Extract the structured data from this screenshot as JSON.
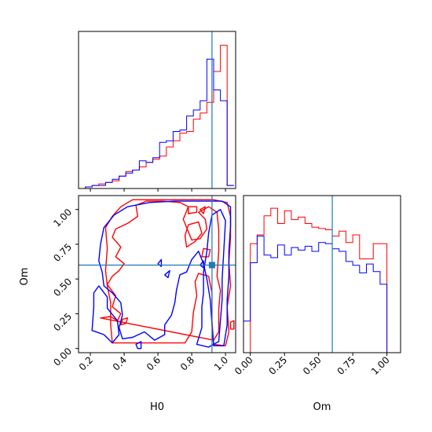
{
  "chart_data": [
    {
      "type": "histogram",
      "panel": "H0 marginal",
      "xlim": [
        0.13,
        1.06
      ],
      "bin_edges": [
        0.13,
        0.17,
        0.21,
        0.25,
        0.29,
        0.33,
        0.37,
        0.41,
        0.45,
        0.49,
        0.53,
        0.57,
        0.61,
        0.65,
        0.69,
        0.73,
        0.77,
        0.81,
        0.85,
        0.89,
        0.93,
        0.97,
        1.01,
        1.05
      ],
      "truth": 0.92,
      "series": [
        {
          "color": "#ff0000",
          "values": [
            0.0,
            0.01,
            0.02,
            0.03,
            0.04,
            0.05,
            0.08,
            0.11,
            0.12,
            0.14,
            0.17,
            0.19,
            0.21,
            0.27,
            0.31,
            0.36,
            0.37,
            0.45,
            0.49,
            0.56,
            0.76,
            0.93,
            0.02
          ]
        },
        {
          "color": "#0000ff",
          "values": [
            0.0,
            0.01,
            0.02,
            0.02,
            0.04,
            0.06,
            0.08,
            0.1,
            0.12,
            0.18,
            0.17,
            0.2,
            0.3,
            0.31,
            0.37,
            0.38,
            0.47,
            0.51,
            0.57,
            0.84,
            0.64,
            0.57,
            0.02
          ]
        }
      ]
    },
    {
      "type": "contour",
      "panel": "H0 vs Om",
      "xlabel": "H0",
      "ylabel": "Om",
      "xlim": [
        0.13,
        1.06
      ],
      "ylim": [
        -0.03,
        1.1
      ],
      "xticks": [
        "0.2",
        "0.4",
        "0.6",
        "0.8",
        "1.0"
      ],
      "yticks": [
        "0.00",
        "0.25",
        "0.50",
        "0.75",
        "1.00"
      ],
      "truth": [
        0.92,
        0.6
      ],
      "series": [
        {
          "color": "#ff0000",
          "contours": [
            [
              [
                0.33,
                0.04
              ],
              [
                0.32,
                0.17
              ],
              [
                0.32,
                0.33
              ],
              [
                0.3,
                0.45
              ],
              [
                0.29,
                0.56
              ],
              [
                0.3,
                0.72
              ],
              [
                0.29,
                0.87
              ],
              [
                0.33,
                0.95
              ],
              [
                0.38,
                1.02
              ],
              [
                0.45,
                1.07
              ],
              [
                0.6,
                1.07
              ],
              [
                0.8,
                1.07
              ],
              [
                0.93,
                1.07
              ],
              [
                1.01,
                1.05
              ],
              [
                1.03,
                0.95
              ],
              [
                1.03,
                0.8
              ],
              [
                1.02,
                0.62
              ],
              [
                1.03,
                0.45
              ],
              [
                1.01,
                0.3
              ],
              [
                1.02,
                0.12
              ],
              [
                1.0,
                0.02
              ],
              [
                0.93,
                0.03
              ],
              [
                0.92,
                0.2
              ],
              [
                0.92,
                0.4
              ],
              [
                0.9,
                0.52
              ],
              [
                0.84,
                0.54
              ],
              [
                0.82,
                0.48
              ],
              [
                0.83,
                0.38
              ],
              [
                0.81,
                0.26
              ],
              [
                0.8,
                0.12
              ],
              [
                0.76,
                0.04
              ]
            ],
            [
              [
                0.26,
                0.22
              ],
              [
                0.32,
                0.23
              ],
              [
                0.36,
                0.2
              ],
              [
                0.38,
                0.25
              ],
              [
                0.33,
                0.3
              ],
              [
                0.35,
                0.38
              ],
              [
                0.3,
                0.46
              ],
              [
                0.33,
                0.52
              ],
              [
                0.37,
                0.56
              ],
              [
                0.4,
                0.61
              ],
              [
                0.35,
                0.66
              ],
              [
                0.38,
                0.73
              ],
              [
                0.33,
                0.8
              ],
              [
                0.35,
                0.86
              ],
              [
                0.42,
                0.9
              ],
              [
                0.48,
                0.95
              ],
              [
                0.47,
                1.03
              ],
              [
                0.53,
                1.06
              ],
              [
                0.63,
                1.06
              ],
              [
                0.73,
                1.05
              ],
              [
                0.78,
                1.02
              ],
              [
                0.75,
                0.93
              ],
              [
                0.78,
                0.84
              ],
              [
                0.8,
                0.78
              ],
              [
                0.85,
                0.79
              ],
              [
                0.89,
                0.86
              ],
              [
                0.88,
                0.93
              ],
              [
                0.84,
                0.98
              ],
              [
                0.9,
                1.02
              ],
              [
                0.95,
                0.98
              ],
              [
                0.96,
                0.85
              ],
              [
                0.96,
                0.7
              ],
              [
                0.95,
                0.52
              ],
              [
                0.97,
                0.42
              ],
              [
                0.96,
                0.28
              ],
              [
                0.96,
                0.12
              ],
              [
                0.93,
                0.06
              ]
            ],
            [
              [
                0.77,
                0.73
              ],
              [
                0.76,
                0.81
              ],
              [
                0.78,
                0.89
              ],
              [
                0.84,
                0.91
              ],
              [
                0.86,
                0.83
              ],
              [
                0.82,
                0.77
              ]
            ],
            [
              [
                0.78,
                0.97
              ],
              [
                0.83,
                0.98
              ],
              [
                0.83,
                1.02
              ],
              [
                0.78,
                1.02
              ]
            ],
            [
              [
                0.85,
                1.0
              ],
              [
                0.88,
                1.02
              ],
              [
                0.87,
                0.97
              ]
            ],
            [
              [
                0.87,
                0.72
              ],
              [
                0.91,
                0.71
              ],
              [
                0.9,
                0.66
              ],
              [
                0.86,
                0.66
              ]
            ],
            [
              [
                0.39,
                0.21
              ],
              [
                0.42,
                0.22
              ],
              [
                0.41,
                0.18
              ],
              [
                0.38,
                0.17
              ]
            ],
            [
              [
                1.03,
                0.14
              ],
              [
                1.05,
                0.14
              ],
              [
                1.05,
                0.2
              ],
              [
                1.03,
                0.19
              ]
            ]
          ]
        },
        {
          "color": "#0000ff",
          "contours": [
            [
              [
                0.39,
                0.07
              ],
              [
                0.37,
                0.15
              ],
              [
                0.39,
                0.24
              ],
              [
                0.38,
                0.33
              ],
              [
                0.33,
                0.4
              ],
              [
                0.28,
                0.45
              ],
              [
                0.27,
                0.55
              ],
              [
                0.25,
                0.63
              ],
              [
                0.26,
                0.75
              ],
              [
                0.28,
                0.87
              ],
              [
                0.34,
                0.96
              ],
              [
                0.42,
                1.02
              ],
              [
                0.55,
                1.05
              ],
              [
                0.7,
                1.06
              ],
              [
                0.85,
                1.06
              ],
              [
                0.98,
                1.06
              ],
              [
                1.03,
                1.02
              ],
              [
                1.03,
                0.88
              ],
              [
                1.02,
                0.7
              ],
              [
                1.02,
                0.52
              ],
              [
                1.01,
                0.35
              ],
              [
                1.01,
                0.17
              ],
              [
                0.99,
                0.02
              ],
              [
                0.93,
                0.02
              ],
              [
                0.92,
                0.17
              ],
              [
                0.91,
                0.35
              ],
              [
                0.89,
                0.5
              ],
              [
                0.87,
                0.61
              ],
              [
                0.84,
                0.7
              ],
              [
                0.8,
                0.64
              ],
              [
                0.77,
                0.55
              ],
              [
                0.73,
                0.53
              ],
              [
                0.71,
                0.42
              ],
              [
                0.7,
                0.33
              ],
              [
                0.68,
                0.24
              ],
              [
                0.64,
                0.17
              ],
              [
                0.64,
                0.1
              ],
              [
                0.58,
                0.06
              ],
              [
                0.52,
                0.12
              ],
              [
                0.45,
                0.08
              ]
            ],
            [
              [
                0.83,
                0.03
              ],
              [
                0.86,
                0.15
              ],
              [
                0.86,
                0.3
              ],
              [
                0.87,
                0.4
              ],
              [
                0.87,
                0.55
              ],
              [
                0.89,
                0.7
              ],
              [
                0.9,
                0.83
              ],
              [
                0.92,
                0.96
              ],
              [
                0.97,
                1.0
              ],
              [
                1.0,
                0.92
              ],
              [
                0.99,
                0.7
              ],
              [
                0.98,
                0.5
              ],
              [
                0.98,
                0.35
              ],
              [
                0.97,
                0.2
              ],
              [
                0.96,
                0.05
              ],
              [
                0.9,
                0.01
              ]
            ],
            [
              [
                0.21,
                0.13
              ],
              [
                0.28,
                0.1
              ],
              [
                0.33,
                0.04
              ],
              [
                0.37,
                0.1
              ],
              [
                0.36,
                0.2
              ],
              [
                0.3,
                0.29
              ],
              [
                0.3,
                0.37
              ],
              [
                0.25,
                0.45
              ],
              [
                0.22,
                0.4
              ],
              [
                0.22,
                0.3
              ]
            ],
            [
              [
                0.6,
                0.61
              ],
              [
                0.62,
                0.64
              ],
              [
                0.62,
                0.59
              ]
            ],
            [
              [
                0.64,
                0.53
              ],
              [
                0.67,
                0.56
              ],
              [
                0.66,
                0.51
              ]
            ],
            [
              [
                0.85,
                0.6
              ],
              [
                0.87,
                0.63
              ],
              [
                0.87,
                0.58
              ]
            ],
            [
              [
                0.47,
                0.03
              ],
              [
                0.5,
                0.05
              ],
              [
                0.5,
                0.0
              ],
              [
                0.48,
                0.0
              ]
            ]
          ]
        }
      ]
    },
    {
      "type": "histogram",
      "panel": "Om marginal",
      "xlabel": "Om",
      "xlim": [
        -0.05,
        1.1
      ],
      "xticks": [
        "0.00",
        "0.25",
        "0.50",
        "0.75",
        "1.00"
      ],
      "bin_edges": [
        -0.05,
        0.0,
        0.05,
        0.1,
        0.15,
        0.2,
        0.25,
        0.3,
        0.35,
        0.4,
        0.45,
        0.5,
        0.55,
        0.6,
        0.65,
        0.7,
        0.75,
        0.8,
        0.85,
        0.9,
        0.95,
        1.0,
        1.05
      ],
      "truth": 0.6,
      "series": [
        {
          "color": "#ff0000",
          "values": [
            0.0,
            0.86,
            0.93,
            1.08,
            1.14,
            1.02,
            1.12,
            1.05,
            1.07,
            1.02,
            0.99,
            0.98,
            0.97,
            0.92,
            0.96,
            0.87,
            0.93,
            0.74,
            0.74,
            0.86,
            0.86,
            0.0
          ]
        },
        {
          "color": "#0000ff",
          "values": [
            0.25,
            0.71,
            0.92,
            0.77,
            0.75,
            0.85,
            0.77,
            0.83,
            0.81,
            0.84,
            0.8,
            0.87,
            0.86,
            0.82,
            0.8,
            0.72,
            0.69,
            0.63,
            0.7,
            0.64,
            0.54,
            0.0
          ]
        }
      ]
    }
  ]
}
